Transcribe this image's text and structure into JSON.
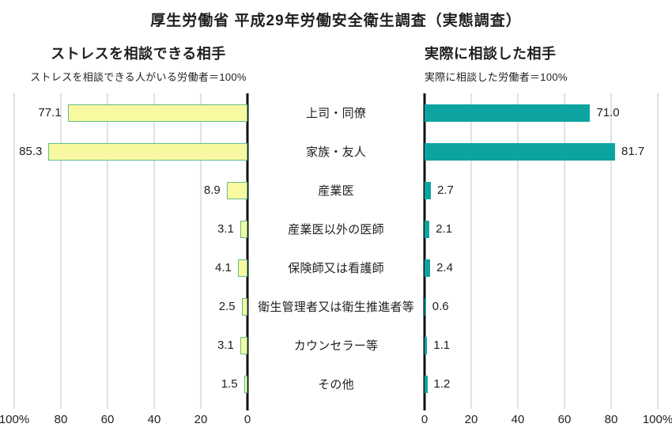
{
  "chart_data": {
    "type": "bar",
    "orientation": "horizontal-butterfly",
    "title": "厚生労働省 平成29年労働安全衛生調査（実態調査）",
    "categories": [
      "上司・同僚",
      "家族・友人",
      "産業医",
      "産業医以外の医師",
      "保険師又は看護師",
      "衛生管理者又は衛生推進者等",
      "カウンセラー等",
      "その他"
    ],
    "series": [
      {
        "name": "ストレスを相談できる相手",
        "subtitle": "ストレスを相談できる人がいる労働者＝100%",
        "side": "left",
        "values": [
          77.1,
          85.3,
          8.9,
          3.1,
          4.1,
          2.5,
          3.1,
          1.5
        ],
        "value_labels": [
          "77.1",
          "85.3",
          "8.9",
          "3.1",
          "4.1",
          "2.5",
          "3.1",
          "1.5"
        ],
        "fill_color": "#f9f9a2",
        "border_color": "#5fbd8a"
      },
      {
        "name": "実際に相談した相手",
        "subtitle": "実際に相談した労働者＝100%",
        "side": "right",
        "values": [
          71.0,
          81.7,
          2.7,
          2.1,
          2.4,
          0.6,
          1.1,
          1.2
        ],
        "value_labels": [
          "71.0",
          "81.7",
          "2.7",
          "2.1",
          "2.4",
          "0.6",
          "1.1",
          "1.2"
        ],
        "fill_color": "#0ca3a0",
        "border_color": "#0ca3a0"
      }
    ],
    "axis": {
      "max": 100,
      "grid_on": true,
      "left_tick_labels": [
        "100%",
        "80",
        "60",
        "40",
        "20",
        "0"
      ],
      "right_tick_labels": [
        "0",
        "20",
        "40",
        "60",
        "80",
        "100%"
      ],
      "grid_color": "#c6c6c6",
      "axis_color": "#111111"
    }
  }
}
